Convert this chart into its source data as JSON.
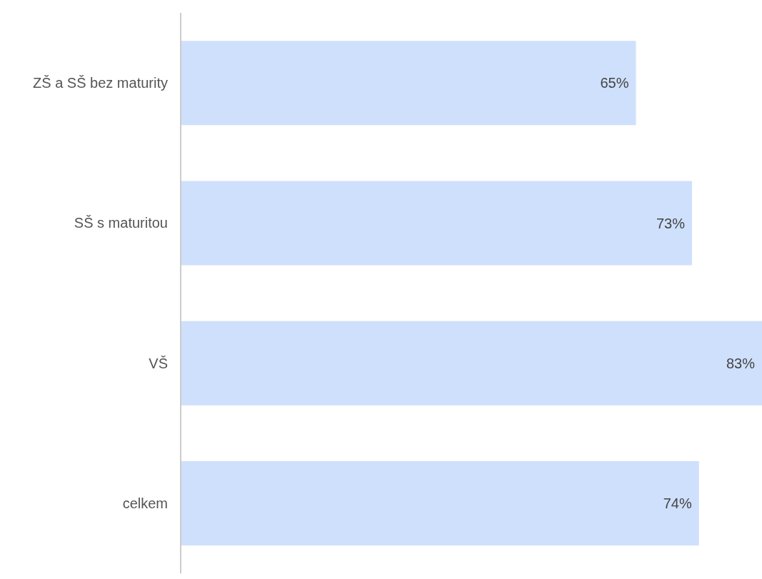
{
  "chart_data": {
    "type": "bar",
    "orientation": "horizontal",
    "categories": [
      "ZŠ a SŠ bez maturity",
      "SŠ s maturitou",
      "VŠ",
      "celkem"
    ],
    "values": [
      65,
      73,
      83,
      74
    ],
    "value_labels": [
      "65%",
      "73%",
      "83%",
      "74%"
    ],
    "color": "#cfe0fc"
  }
}
